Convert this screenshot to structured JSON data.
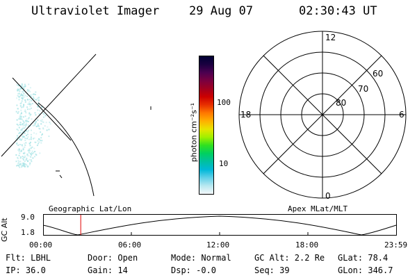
{
  "header": {
    "instrument": "Ultraviolet Imager",
    "date": "29 Aug 07",
    "time": "02:30:43 UT"
  },
  "colorbar": {
    "unit_label": "photon cm⁻²s⁻¹",
    "ticks": [
      "100",
      "10"
    ],
    "colors": [
      "#000033",
      "#1a0040",
      "#4b0050",
      "#7a0040",
      "#a00020",
      "#cc0000",
      "#e83000",
      "#ff7800",
      "#ffb000",
      "#e8e400",
      "#a0f000",
      "#30e020",
      "#00d060",
      "#00c0a0",
      "#00b8d8",
      "#60d0e8",
      "#b8e8f0",
      "#f4f8fa"
    ]
  },
  "polar_plot": {
    "mlt_labels": [
      "12",
      "18",
      "6",
      "0"
    ],
    "lat_labels": [
      "60",
      "70",
      "80"
    ]
  },
  "timeline": {
    "y_axis_label": "GC Alt",
    "y_ticks": [
      "9.0",
      "1.8"
    ],
    "left_caption": "Geographic Lat/Lon",
    "right_caption": "Apex MLat/MLT",
    "x_ticks": [
      "00:00",
      "06:00",
      "12:00",
      "18:00",
      "23:59"
    ],
    "marker_time_hours": 2.512
  },
  "status": {
    "flt": "Flt: LBHL",
    "ip": "IP: 36.0",
    "door": "Door: Open",
    "gain": "Gain: 14",
    "mode": "Mode: Normal",
    "dsp": "Dsp:    -0.0",
    "gc_alt": "GC Alt: 2.2 Re",
    "seq": "Seq: 39",
    "glat": "GLat:  78.4",
    "glon": "GLon: 346.7"
  }
}
